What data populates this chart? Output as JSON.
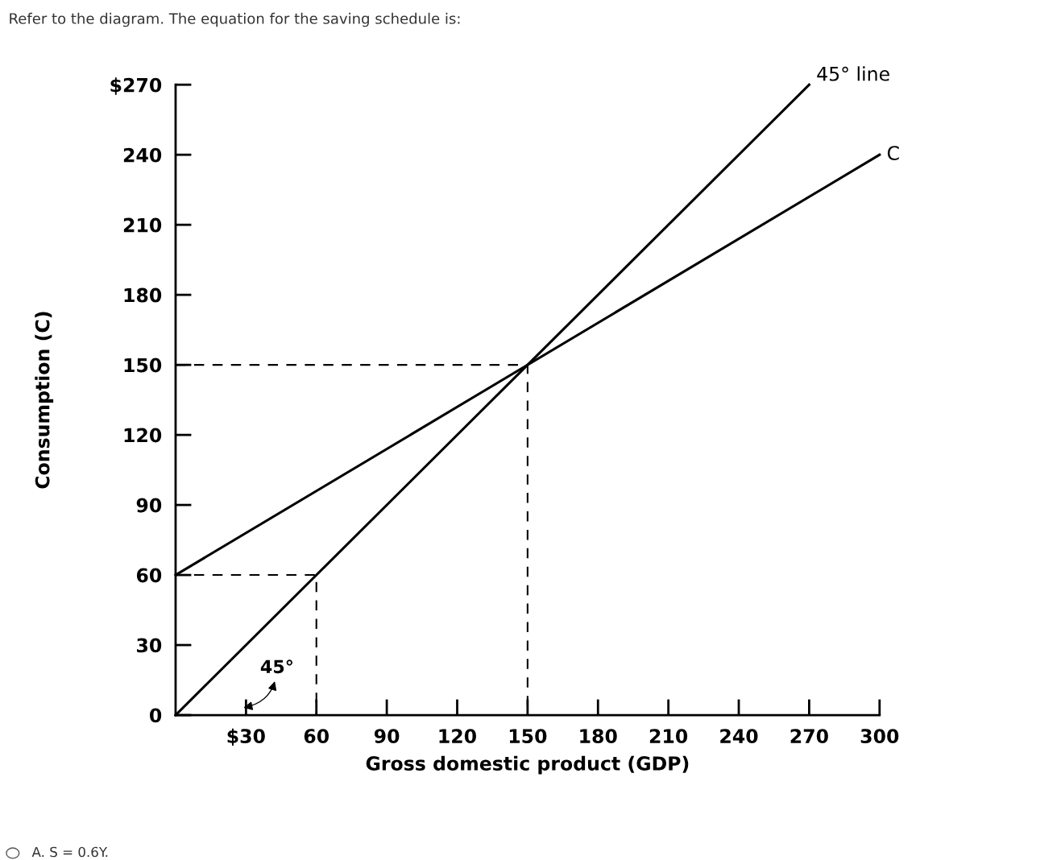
{
  "chart_data": {
    "type": "line",
    "title": "Refer to the diagram. The equation for the saving schedule is:",
    "xlabel": "Gross domestic product (GDP)",
    "ylabel": "Consumption (C)",
    "xlim": [
      0,
      300
    ],
    "ylim": [
      0,
      270
    ],
    "xticks": [
      {
        "value": 30,
        "label": "$30"
      },
      60,
      90,
      120,
      150,
      180,
      210,
      240,
      270,
      300
    ],
    "yticks": [
      0,
      30,
      60,
      90,
      120,
      150,
      180,
      210,
      240,
      {
        "value": 270,
        "label": "$270"
      }
    ],
    "series": [
      {
        "name": "45° line",
        "color": "#000000",
        "x": [
          0,
          270
        ],
        "values": [
          0,
          270
        ]
      },
      {
        "name": "C",
        "color": "#000000",
        "x": [
          0,
          300
        ],
        "values": [
          60,
          240
        ]
      },
      {
        "color": "#000000",
        "line_style": "dashed",
        "x": [
          0,
          150,
          150
        ],
        "values": [
          150,
          150,
          0
        ]
      },
      {
        "color": "#000000",
        "line_style": "dashed",
        "x": [
          0,
          60,
          60
        ],
        "values": [
          60,
          60,
          0
        ]
      }
    ],
    "annotations": [
      "45°",
      "A. S = 0.6Y."
    ],
    "grid": false,
    "legend": false,
    "line_style": "solid",
    "marker": "none"
  }
}
